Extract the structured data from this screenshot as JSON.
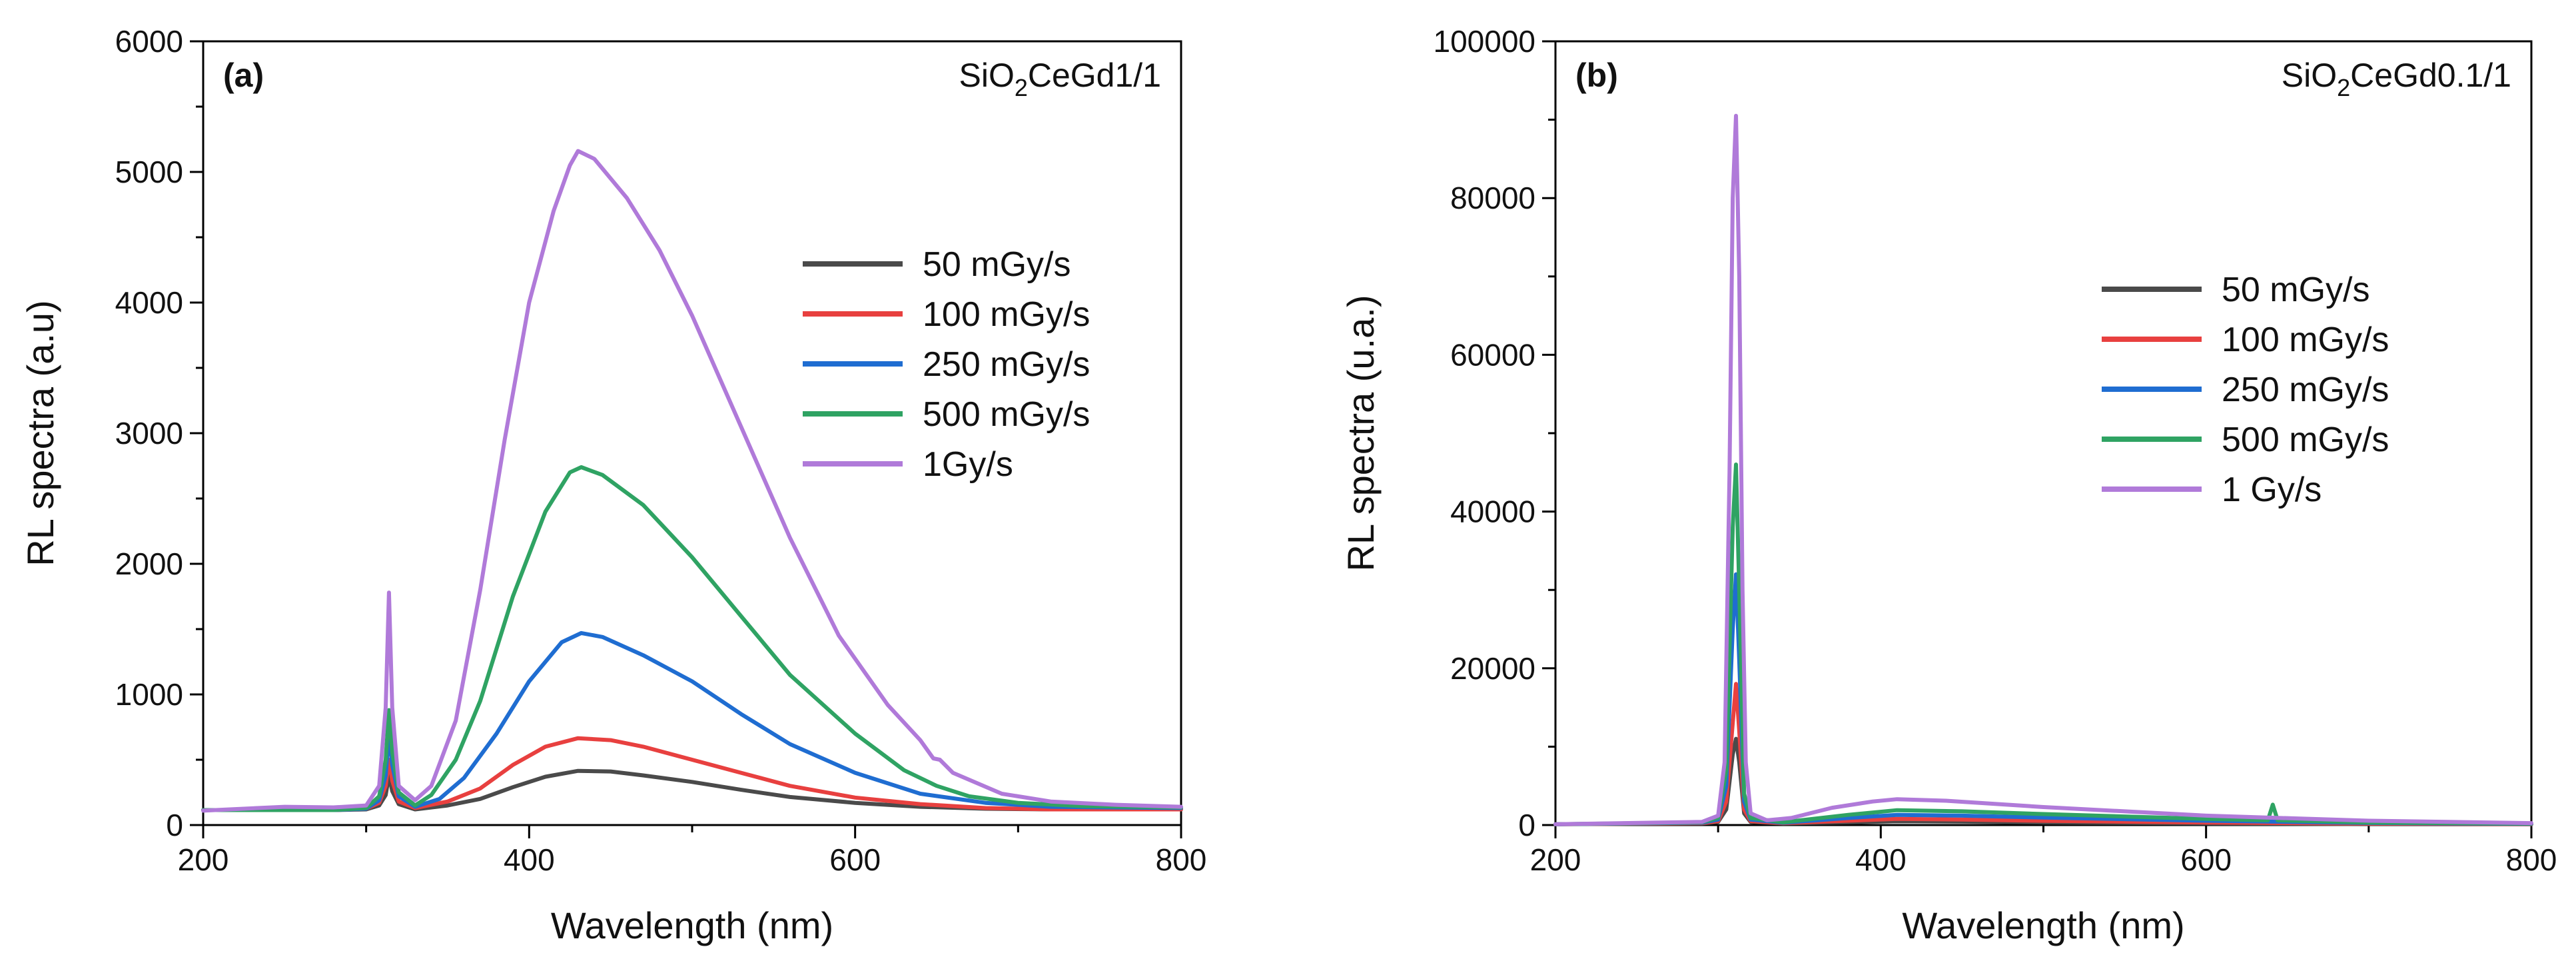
{
  "chart_data": [
    {
      "type": "line",
      "panel_label": "(a)",
      "sample": {
        "prefix": "SiO",
        "subscript": "2",
        "suffix": "CeGd1/1"
      },
      "xlabel": "Wavelength (nm)",
      "ylabel": "RL spectra (a.u)",
      "xlim": [
        200,
        800
      ],
      "ylim": [
        0,
        6000
      ],
      "xticks": [
        200,
        400,
        600,
        800
      ],
      "yticks": [
        0,
        1000,
        2000,
        3000,
        4000,
        5000,
        6000
      ],
      "grid": false,
      "legend_position": "center-right",
      "series": [
        {
          "name": "50 mGy/s",
          "color": "#4a4a4a",
          "points": [
            [
              200,
              115
            ],
            [
              280,
              115
            ],
            [
              300,
              120
            ],
            [
              308,
              150
            ],
            [
              312,
              230
            ],
            [
              314,
              380
            ],
            [
              316,
              260
            ],
            [
              320,
              160
            ],
            [
              330,
              120
            ],
            [
              350,
              150
            ],
            [
              370,
              200
            ],
            [
              390,
              290
            ],
            [
              410,
              370
            ],
            [
              430,
              415
            ],
            [
              450,
              410
            ],
            [
              470,
              380
            ],
            [
              500,
              330
            ],
            [
              530,
              270
            ],
            [
              560,
              215
            ],
            [
              600,
              170
            ],
            [
              640,
              140
            ],
            [
              680,
              125
            ],
            [
              720,
              120
            ],
            [
              800,
              120
            ]
          ]
        },
        {
          "name": "100 mGy/s",
          "color": "#e8403f",
          "points": [
            [
              200,
              115
            ],
            [
              280,
              115
            ],
            [
              300,
              125
            ],
            [
              308,
              170
            ],
            [
              312,
              300
            ],
            [
              314,
              500
            ],
            [
              316,
              340
            ],
            [
              320,
              180
            ],
            [
              330,
              130
            ],
            [
              350,
              180
            ],
            [
              370,
              280
            ],
            [
              390,
              460
            ],
            [
              410,
              600
            ],
            [
              430,
              665
            ],
            [
              450,
              650
            ],
            [
              470,
              600
            ],
            [
              500,
              500
            ],
            [
              530,
              400
            ],
            [
              560,
              300
            ],
            [
              600,
              210
            ],
            [
              640,
              160
            ],
            [
              680,
              130
            ],
            [
              720,
              120
            ],
            [
              800,
              120
            ]
          ]
        },
        {
          "name": "250 mGy/s",
          "color": "#1f6dd1",
          "points": [
            [
              200,
              115
            ],
            [
              280,
              115
            ],
            [
              300,
              125
            ],
            [
              308,
              190
            ],
            [
              312,
              380
            ],
            [
              314,
              700
            ],
            [
              316,
              460
            ],
            [
              320,
              220
            ],
            [
              330,
              140
            ],
            [
              345,
              200
            ],
            [
              360,
              360
            ],
            [
              380,
              700
            ],
            [
              400,
              1100
            ],
            [
              420,
              1400
            ],
            [
              432,
              1470
            ],
            [
              445,
              1440
            ],
            [
              470,
              1300
            ],
            [
              500,
              1100
            ],
            [
              530,
              850
            ],
            [
              560,
              620
            ],
            [
              600,
              400
            ],
            [
              640,
              240
            ],
            [
              680,
              170
            ],
            [
              720,
              140
            ],
            [
              800,
              130
            ]
          ]
        },
        {
          "name": "500 mGy/s",
          "color": "#2fa363",
          "points": [
            [
              200,
              115
            ],
            [
              280,
              115
            ],
            [
              300,
              130
            ],
            [
              308,
              220
            ],
            [
              312,
              500
            ],
            [
              314,
              880
            ],
            [
              316,
              560
            ],
            [
              320,
              250
            ],
            [
              330,
              150
            ],
            [
              340,
              230
            ],
            [
              355,
              500
            ],
            [
              370,
              950
            ],
            [
              390,
              1750
            ],
            [
              410,
              2400
            ],
            [
              425,
              2700
            ],
            [
              432,
              2740
            ],
            [
              445,
              2680
            ],
            [
              470,
              2450
            ],
            [
              500,
              2050
            ],
            [
              530,
              1600
            ],
            [
              560,
              1150
            ],
            [
              600,
              700
            ],
            [
              630,
              420
            ],
            [
              650,
              300
            ],
            [
              670,
              220
            ],
            [
              700,
              170
            ],
            [
              740,
              145
            ],
            [
              800,
              135
            ]
          ]
        },
        {
          "name": "1Gy/s",
          "color": "#b07ad9",
          "points": [
            [
              200,
              110
            ],
            [
              250,
              140
            ],
            [
              280,
              135
            ],
            [
              300,
              150
            ],
            [
              308,
              300
            ],
            [
              312,
              900
            ],
            [
              314,
              1780
            ],
            [
              316,
              900
            ],
            [
              320,
              300
            ],
            [
              330,
              190
            ],
            [
              340,
              300
            ],
            [
              355,
              800
            ],
            [
              370,
              1800
            ],
            [
              385,
              2950
            ],
            [
              400,
              4000
            ],
            [
              415,
              4700
            ],
            [
              425,
              5050
            ],
            [
              430,
              5160
            ],
            [
              440,
              5100
            ],
            [
              460,
              4800
            ],
            [
              480,
              4400
            ],
            [
              500,
              3900
            ],
            [
              530,
              3050
            ],
            [
              560,
              2200
            ],
            [
              590,
              1450
            ],
            [
              620,
              920
            ],
            [
              640,
              650
            ],
            [
              648,
              510
            ],
            [
              652,
              500
            ],
            [
              660,
              400
            ],
            [
              690,
              240
            ],
            [
              720,
              180
            ],
            [
              760,
              155
            ],
            [
              800,
              140
            ]
          ]
        }
      ]
    },
    {
      "type": "line",
      "panel_label": "(b)",
      "sample": {
        "prefix": "SiO",
        "subscript": "2",
        "suffix": "CeGd0.1/1"
      },
      "xlabel": "Wavelength (nm)",
      "ylabel": "RL spectra (u.a.)",
      "xlim": [
        200,
        800
      ],
      "ylim": [
        0,
        100000
      ],
      "xticks": [
        200,
        400,
        600,
        800
      ],
      "yticks": [
        0,
        20000,
        40000,
        60000,
        80000,
        100000
      ],
      "grid": false,
      "legend_position": "center-right",
      "series": [
        {
          "name": "50 mGy/s",
          "color": "#4a4a4a",
          "points": [
            [
              200,
              100
            ],
            [
              290,
              200
            ],
            [
              300,
              400
            ],
            [
              305,
              2000
            ],
            [
              309,
              9000
            ],
            [
              311,
              11000
            ],
            [
              313,
              8000
            ],
            [
              316,
              1500
            ],
            [
              320,
              400
            ],
            [
              340,
              200
            ],
            [
              380,
              350
            ],
            [
              410,
              480
            ],
            [
              450,
              430
            ],
            [
              500,
              330
            ],
            [
              600,
              200
            ],
            [
              700,
              120
            ],
            [
              800,
              100
            ]
          ]
        },
        {
          "name": "100 mGy/s",
          "color": "#e8403f",
          "points": [
            [
              200,
              100
            ],
            [
              290,
              250
            ],
            [
              300,
              500
            ],
            [
              305,
              3000
            ],
            [
              309,
              13000
            ],
            [
              311,
              18000
            ],
            [
              313,
              12000
            ],
            [
              316,
              2000
            ],
            [
              320,
              500
            ],
            [
              340,
              250
            ],
            [
              380,
              550
            ],
            [
              410,
              780
            ],
            [
              450,
              700
            ],
            [
              500,
              540
            ],
            [
              600,
              320
            ],
            [
              700,
              180
            ],
            [
              800,
              120
            ]
          ]
        },
        {
          "name": "250 mGy/s",
          "color": "#1f6dd1",
          "points": [
            [
              200,
              100
            ],
            [
              290,
              300
            ],
            [
              300,
              700
            ],
            [
              305,
              5000
            ],
            [
              309,
              25000
            ],
            [
              311,
              32000
            ],
            [
              313,
              21000
            ],
            [
              316,
              3000
            ],
            [
              320,
              700
            ],
            [
              340,
              300
            ],
            [
              380,
              900
            ],
            [
              410,
              1300
            ],
            [
              450,
              1200
            ],
            [
              500,
              950
            ],
            [
              600,
              550
            ],
            [
              700,
              260
            ],
            [
              800,
              150
            ]
          ]
        },
        {
          "name": "500 mGy/s",
          "color": "#2fa363",
          "points": [
            [
              200,
              100
            ],
            [
              290,
              350
            ],
            [
              300,
              900
            ],
            [
              305,
              7000
            ],
            [
              309,
              38000
            ],
            [
              311,
              46000
            ],
            [
              313,
              30000
            ],
            [
              316,
              4000
            ],
            [
              320,
              900
            ],
            [
              340,
              350
            ],
            [
              380,
              1300
            ],
            [
              410,
              1900
            ],
            [
              450,
              1750
            ],
            [
              500,
              1400
            ],
            [
              600,
              780
            ],
            [
              638,
              600
            ],
            [
              641,
              2600
            ],
            [
              644,
              600
            ],
            [
              700,
              320
            ],
            [
              800,
              180
            ]
          ]
        },
        {
          "name": "1 Gy/s",
          "color": "#b07ad9",
          "points": [
            [
              200,
              100
            ],
            [
              290,
              400
            ],
            [
              300,
              1200
            ],
            [
              304,
              8000
            ],
            [
              307,
              45000
            ],
            [
              309,
              80000
            ],
            [
              311,
              90500
            ],
            [
              313,
              70000
            ],
            [
              315,
              30000
            ],
            [
              317,
              8000
            ],
            [
              320,
              1500
            ],
            [
              330,
              600
            ],
            [
              345,
              900
            ],
            [
              370,
              2200
            ],
            [
              395,
              3000
            ],
            [
              410,
              3300
            ],
            [
              440,
              3100
            ],
            [
              500,
              2300
            ],
            [
              600,
              1200
            ],
            [
              700,
              550
            ],
            [
              800,
              250
            ]
          ]
        }
      ]
    }
  ]
}
